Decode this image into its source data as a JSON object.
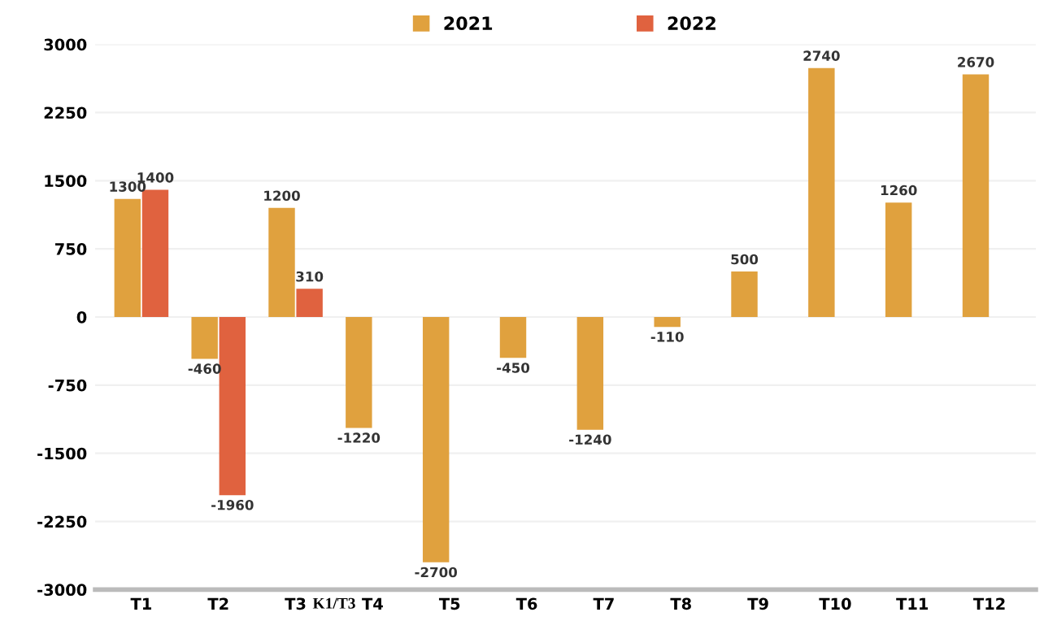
{
  "chart_data": {
    "type": "bar",
    "categories": [
      "T1",
      "T2",
      "T3",
      "T4",
      "T5",
      "T6",
      "T7",
      "T8",
      "T9",
      "T10",
      "T11",
      "T12"
    ],
    "series": [
      {
        "name": "2021",
        "color": "#e0a13e",
        "values": [
          1300,
          -460,
          1200,
          -1220,
          -2700,
          -450,
          -1240,
          -110,
          500,
          2740,
          1260,
          2670
        ]
      },
      {
        "name": "2022",
        "color": "#e0623f",
        "values": [
          1400,
          -1960,
          310,
          null,
          null,
          null,
          null,
          null,
          null,
          null,
          null,
          null
        ]
      }
    ],
    "ylim": [
      -3000,
      3000
    ],
    "yticks": [
      -3000,
      -2250,
      -1500,
      -750,
      0,
      750,
      1500,
      2250,
      3000
    ],
    "grid": "y",
    "legend": "top",
    "data_labels": true,
    "annotations": [
      "K1/T3"
    ]
  }
}
